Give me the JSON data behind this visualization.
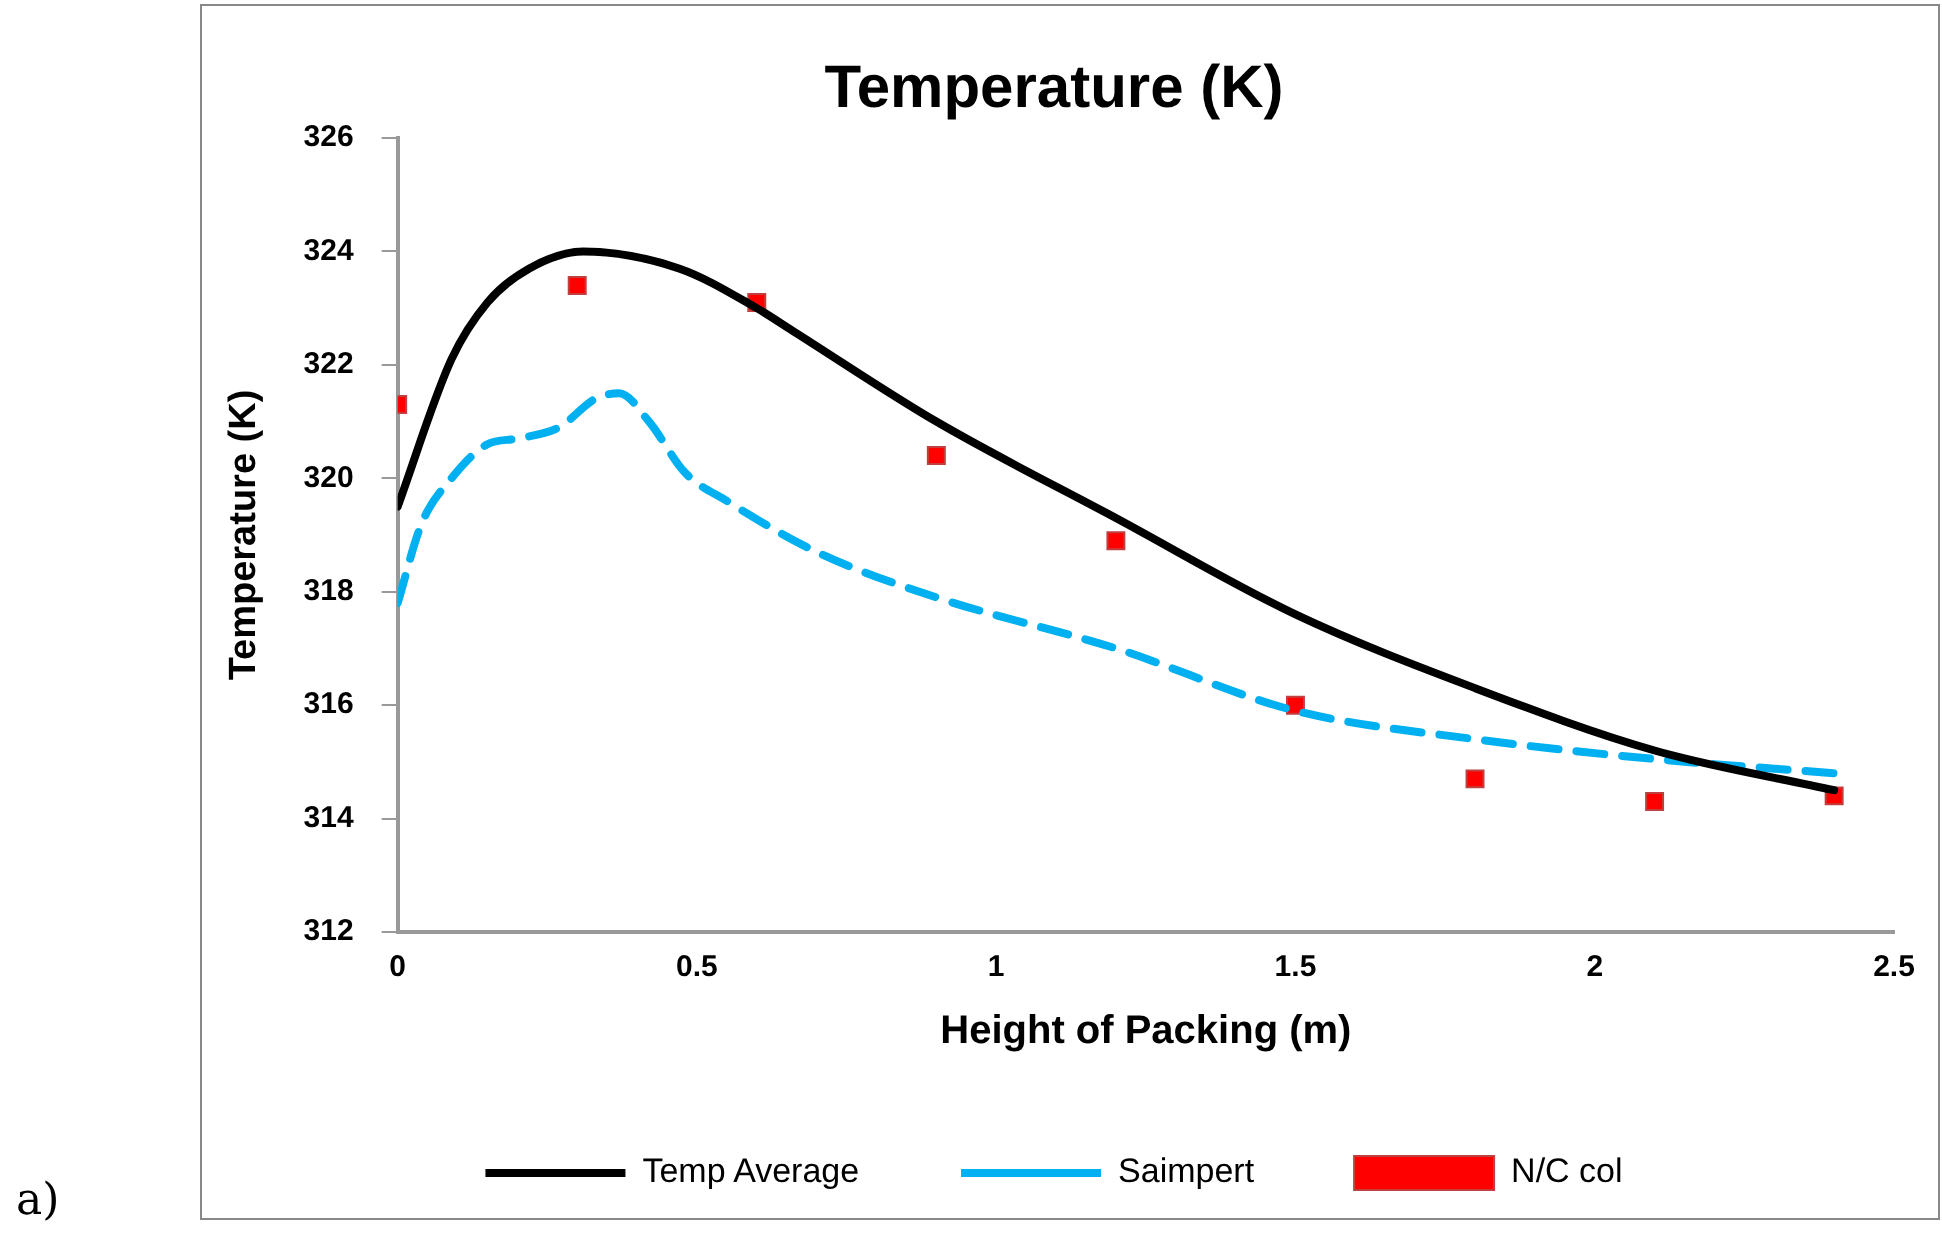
{
  "chart_data": {
    "type": "line",
    "title": "Temperature (K)",
    "xlabel": "Height of Packing (m)",
    "ylabel": "Temperature (K)",
    "xlim": [
      0,
      2.5
    ],
    "xticks": [
      0,
      0.5,
      1,
      1.5,
      2,
      2.5
    ],
    "ylim": [
      312,
      326
    ],
    "yticks": [
      312,
      314,
      316,
      318,
      320,
      322,
      324,
      326
    ],
    "grid": false,
    "legend": "bottom",
    "annotations": [
      "a)"
    ],
    "series": [
      {
        "name": "Temp Average",
        "color": "#000000",
        "line_style": "solid",
        "marker": "none",
        "x": [
          0,
          0.09,
          0.15,
          0.22,
          0.31,
          0.47,
          0.6,
          0.66,
          0.9,
          1.2,
          1.5,
          1.8,
          2.1,
          2.4
        ],
        "values": [
          319.5,
          322.1,
          323.1,
          323.7,
          324.0,
          323.7,
          323.0,
          322.6,
          321.0,
          319.3,
          317.6,
          316.3,
          315.2,
          314.5
        ]
      },
      {
        "name": "Saimpert",
        "color": "#00b0f0",
        "line_style": "dashed",
        "marker": "none",
        "x": [
          0,
          0.04,
          0.09,
          0.15,
          0.2,
          0.27,
          0.33,
          0.37,
          0.42,
          0.48,
          0.55,
          0.7,
          0.9,
          1.2,
          1.5,
          1.8,
          2.1,
          2.4
        ],
        "values": [
          317.8,
          319.2,
          320.0,
          320.6,
          320.7,
          320.9,
          321.4,
          321.5,
          321.0,
          320.1,
          319.6,
          318.7,
          317.9,
          317.0,
          315.9,
          315.4,
          315.05,
          314.8
        ]
      },
      {
        "name": "N/C col",
        "type": "scatter",
        "color": "#ff0000",
        "marker": "square",
        "x": [
          0,
          0.3,
          0.6,
          0.9,
          1.2,
          1.5,
          1.8,
          2.1,
          2.4
        ],
        "values": [
          321.3,
          323.4,
          323.1,
          320.4,
          318.9,
          316.0,
          314.7,
          314.3,
          314.4
        ]
      }
    ]
  }
}
